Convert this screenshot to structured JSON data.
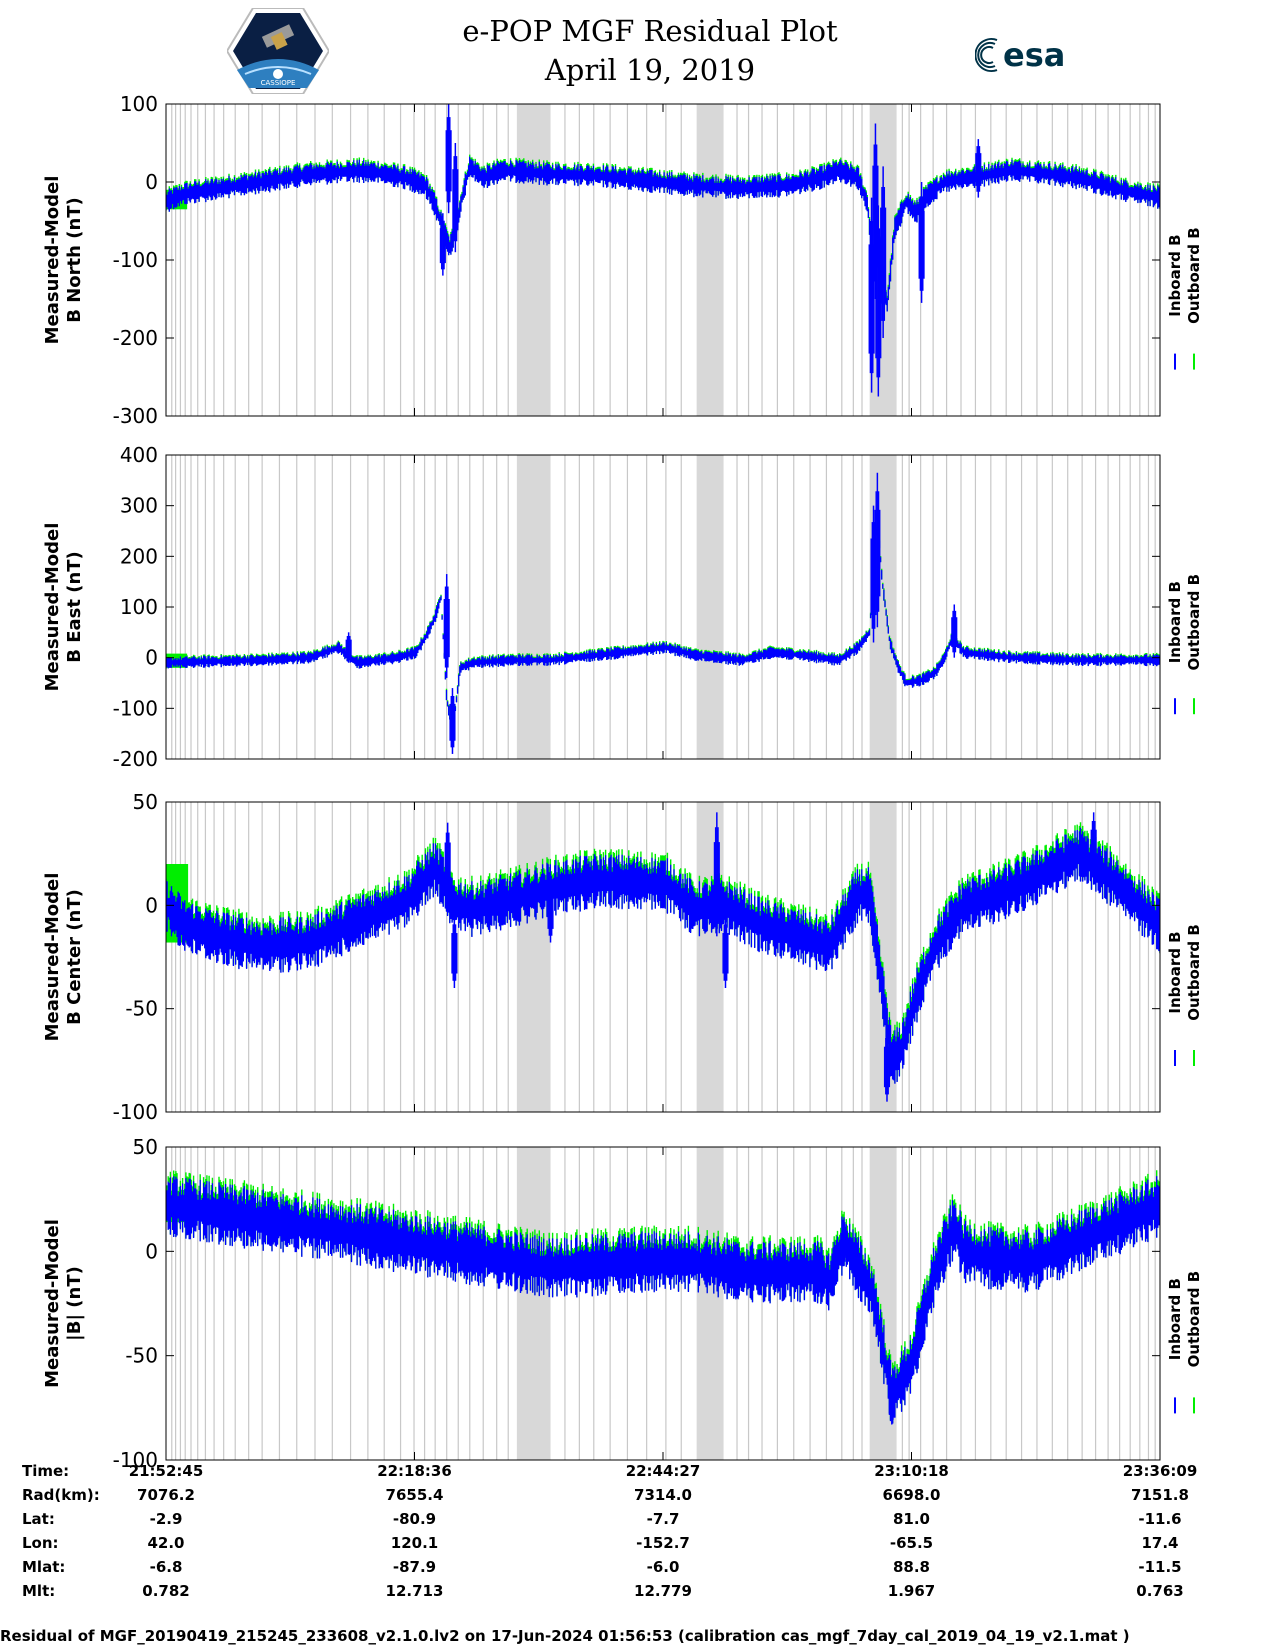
{
  "title": {
    "line1": "e-POP MGF Residual Plot",
    "line2": "April 19, 2019"
  },
  "logos": {
    "left": {
      "name": "cassiope-logo",
      "text": "CASSIOPE"
    },
    "right": {
      "name": "esa-logo",
      "text": "esa"
    }
  },
  "colors": {
    "inboard": "#0000ff",
    "outboard": "#00ee00",
    "shade": "#d8d8d8",
    "grid_line": "#c8c8c8"
  },
  "chart_data": {
    "type": "line",
    "x_axis": {
      "units": "minutes since 21:52:45",
      "range": [
        0,
        103.4
      ],
      "ticks": [
        0,
        25.85,
        51.7,
        77.55,
        103.4
      ],
      "tick_labels": [
        "21:52:45",
        "22:18:36",
        "22:44:27",
        "23:10:18",
        "23:36:09"
      ]
    },
    "series_names": [
      "Inboard B",
      "Outboard B"
    ],
    "shaded_intervals": [
      [
        36.5,
        40.0
      ],
      [
        55.2,
        58.0
      ],
      [
        73.2,
        76.0
      ]
    ],
    "gap_line_times": [
      0.6,
      1.0,
      1.5,
      2.0,
      2.6,
      3.3,
      4.1,
      5.0,
      6.0,
      7.2,
      8.6,
      10.0,
      11.8,
      13.6,
      15.5,
      17.3,
      19.2,
      21.0,
      22.7,
      24.4,
      25.8,
      26.9,
      28.0,
      29.2,
      30.4,
      31.6,
      33.0,
      34.4,
      35.6,
      41.5,
      43.0,
      44.5,
      46.2,
      48.0,
      50.0,
      52.0,
      53.6,
      59.4,
      60.6,
      62.0,
      63.6,
      65.3,
      67.0,
      68.7,
      70.3,
      71.5,
      72.4,
      76.6,
      77.3,
      78.5,
      79.8,
      81.2,
      82.7,
      84.2,
      85.8,
      87.4,
      89.0,
      90.6,
      92.2,
      93.8,
      95.3,
      96.7,
      98.0,
      99.2,
      100.3,
      101.3,
      102.2,
      102.9
    ],
    "panels": [
      {
        "name": "b-north",
        "ylabel_line1": "Measured-Model",
        "ylabel_line2": "B North (nT)",
        "ylim": [
          -300,
          100
        ],
        "yticks": [
          100,
          0,
          -100,
          -200,
          -300
        ],
        "ytick_labels": [
          "100",
          "0",
          "-100",
          "-200",
          "-300"
        ],
        "baseline_t": [
          0,
          2,
          10,
          15,
          20,
          22,
          25,
          27,
          28,
          29.5,
          30.2,
          30.8,
          31.6,
          33,
          35,
          40,
          45,
          55,
          60,
          65,
          68,
          70,
          72,
          73,
          73.6,
          74.3,
          75.0,
          75.8,
          77,
          78,
          79,
          81,
          85,
          88,
          92,
          95,
          100,
          103.4
        ],
        "baseline_v": [
          -25,
          -15,
          0,
          10,
          14,
          12,
          5,
          -5,
          -30,
          -85,
          -60,
          -20,
          20,
          5,
          15,
          10,
          8,
          -5,
          -8,
          -4,
          5,
          15,
          5,
          -30,
          -120,
          -80,
          -160,
          -60,
          -25,
          -40,
          -20,
          0,
          8,
          15,
          10,
          5,
          -12,
          -20
        ],
        "noise_amp": 10,
        "spikes": [
          {
            "t": 28.8,
            "lo": -120,
            "hi": -40
          },
          {
            "t": 29.4,
            "lo": -40,
            "hi": 100
          },
          {
            "t": 30.1,
            "lo": -90,
            "hi": 50
          },
          {
            "t": 73.4,
            "lo": -270,
            "hi": -20
          },
          {
            "t": 73.8,
            "lo": -150,
            "hi": 75
          },
          {
            "t": 74.1,
            "lo": -275,
            "hi": -30
          },
          {
            "t": 74.6,
            "lo": -200,
            "hi": 20
          },
          {
            "t": 78.6,
            "lo": -155,
            "hi": 0
          },
          {
            "t": 84.5,
            "lo": -20,
            "hi": 55
          }
        ],
        "outboard_patch": {
          "t0": 0,
          "t1": 2.2,
          "lo": -35,
          "hi": -10
        }
      },
      {
        "name": "b-east",
        "ylabel_line1": "Measured-Model",
        "ylabel_line2": "B East (nT)",
        "ylim": [
          -200,
          400
        ],
        "yticks": [
          400,
          300,
          200,
          100,
          0,
          -100,
          -200
        ],
        "ytick_labels": [
          "400",
          "300",
          "200",
          "100",
          "0",
          "-100",
          "-200"
        ],
        "baseline_t": [
          0,
          10,
          15,
          18,
          19,
          20,
          24,
          26,
          27,
          28,
          28.6,
          29.2,
          29.8,
          30.6,
          32,
          36,
          40,
          45,
          52,
          55,
          60,
          63,
          66,
          70,
          72,
          73.2,
          73.6,
          74.0,
          74.5,
          75.3,
          76.2,
          77,
          78.5,
          80,
          81,
          81.8,
          83,
          88,
          95,
          103.4
        ],
        "baseline_v": [
          -10,
          -5,
          0,
          20,
          0,
          -10,
          0,
          10,
          40,
          80,
          120,
          -80,
          -150,
          -20,
          -10,
          -5,
          -5,
          5,
          20,
          5,
          -5,
          10,
          5,
          -5,
          20,
          50,
          180,
          280,
          150,
          30,
          -20,
          -50,
          -45,
          -30,
          0,
          40,
          10,
          0,
          -5,
          -5
        ],
        "noise_amp": 8,
        "spikes": [
          {
            "t": 29.2,
            "lo": -40,
            "hi": 165
          },
          {
            "t": 29.8,
            "lo": -190,
            "hi": -60
          },
          {
            "t": 74.0,
            "lo": 60,
            "hi": 365
          },
          {
            "t": 73.6,
            "lo": 30,
            "hi": 300
          },
          {
            "t": 82.0,
            "lo": 0,
            "hi": 105
          },
          {
            "t": 19.0,
            "lo": -10,
            "hi": 50
          }
        ],
        "outboard_patch": {
          "t0": 0,
          "t1": 2.2,
          "lo": -20,
          "hi": 8
        }
      },
      {
        "name": "b-center",
        "ylabel_line1": "Measured-Model",
        "ylabel_line2": "B Center (nT)",
        "ylim": [
          -100,
          50
        ],
        "yticks": [
          50,
          0,
          -50,
          -100
        ],
        "ytick_labels": [
          "50",
          "0",
          "-50",
          "-100"
        ],
        "baseline_t": [
          0,
          2,
          5,
          10,
          15,
          20,
          25,
          28,
          29,
          30,
          32,
          38,
          40,
          45,
          52,
          55,
          58,
          62,
          66,
          69,
          72,
          73.2,
          74.2,
          75.5,
          76.5,
          78,
          80,
          83,
          86,
          90,
          95,
          99,
          103.4
        ],
        "baseline_v": [
          0,
          -10,
          -15,
          -20,
          -18,
          -8,
          2,
          18,
          10,
          0,
          -2,
          5,
          8,
          12,
          10,
          -2,
          0,
          -10,
          -15,
          -20,
          5,
          5,
          -30,
          -75,
          -70,
          -45,
          -20,
          0,
          4,
          12,
          25,
          10,
          -10
        ],
        "noise_amp": 9,
        "spikes": [
          {
            "t": 29.3,
            "lo": 0,
            "hi": 40
          },
          {
            "t": 30.0,
            "lo": -40,
            "hi": -5
          },
          {
            "t": 40.0,
            "lo": -18,
            "hi": 15
          },
          {
            "t": 57.3,
            "lo": -15,
            "hi": 45
          },
          {
            "t": 58.2,
            "lo": -40,
            "hi": -5
          },
          {
            "t": 75.0,
            "lo": -95,
            "hi": -60
          },
          {
            "t": 96.5,
            "lo": 10,
            "hi": 45
          }
        ],
        "outboard_patch": {
          "t0": 0,
          "t1": 2.3,
          "lo": -18,
          "hi": 20
        }
      },
      {
        "name": "b-magnitude",
        "ylabel_line1": "Measured-Model",
        "ylabel_line2": "|B| (nT)",
        "ylim": [
          -100,
          50
        ],
        "yticks": [
          50,
          0,
          -50,
          -100
        ],
        "ytick_labels": [
          "50",
          "0",
          "-50",
          "-100"
        ],
        "baseline_t": [
          0,
          10,
          20,
          30,
          40,
          50,
          55,
          60,
          68,
          69,
          70.5,
          73.5,
          75.5,
          77.5,
          80,
          82,
          83,
          85,
          90,
          95,
          100,
          103.4
        ],
        "baseline_v": [
          22,
          15,
          8,
          0,
          -8,
          -5,
          -5,
          -10,
          -10,
          -15,
          5,
          -20,
          -70,
          -55,
          -10,
          12,
          0,
          -3,
          -5,
          5,
          15,
          22
        ],
        "noise_amp": 10,
        "spikes": [
          {
            "t": 75.5,
            "lo": -83,
            "hi": -60
          },
          {
            "t": 70.6,
            "lo": -5,
            "hi": 14
          },
          {
            "t": 82.0,
            "lo": 5,
            "hi": 20
          }
        ],
        "outboard_patch": {
          "t0": 0,
          "t1": 2.3,
          "lo": 14,
          "hi": 29
        }
      }
    ]
  },
  "annotations": {
    "row_labels": [
      "Time:",
      "Rad(km):",
      "Lat:",
      "Lon:",
      "Mlat:",
      "Mlt:"
    ],
    "columns": [
      [
        "21:52:45",
        "7076.2",
        "-2.9",
        "42.0",
        "-6.8",
        "0.782"
      ],
      [
        "22:18:36",
        "7655.4",
        "-80.9",
        "120.1",
        "-87.9",
        "12.713"
      ],
      [
        "22:44:27",
        "7314.0",
        "-7.7",
        "-152.7",
        "-6.0",
        "12.779"
      ],
      [
        "23:10:18",
        "6698.0",
        "81.0",
        "-65.5",
        "88.8",
        "1.967"
      ],
      [
        "23:36:09",
        "7151.8",
        "-11.6",
        "17.4",
        "-11.5",
        "0.763"
      ]
    ]
  },
  "footer": "Residual of MGF_20190419_215245_233608_v2.1.0.lv2 on 17-Jun-2024 01:56:53 (calibration cas_mgf_7day_cal_2019_04_19_v2.1.mat )"
}
